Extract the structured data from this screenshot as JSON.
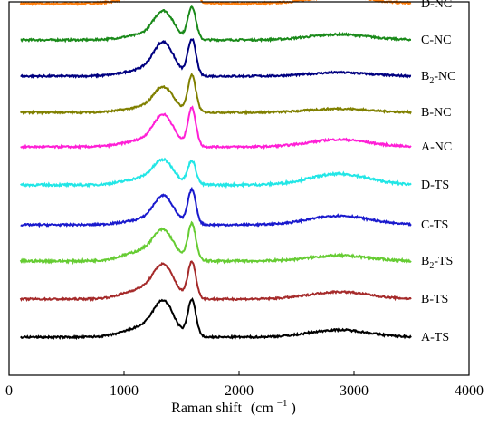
{
  "chart_data": {
    "type": "line",
    "title": "",
    "xlabel": "Raman shift",
    "xlabel_unit_base": "(cm",
    "xlabel_unit_sup": "−1",
    "xlabel_unit_close": ")",
    "ylabel": "",
    "xlim": [
      0,
      4000
    ],
    "xticks": [
      "0",
      "1000",
      "2000",
      "3000",
      "4000"
    ],
    "x_data_range": [
      100,
      3500
    ],
    "grid": false,
    "legend": "labels at right end of each curve",
    "series": [
      {
        "name": "D-NC",
        "name_sub": "",
        "name_tail": "",
        "color": "#ff7f0e",
        "baseline": 10.0,
        "dband": 1.0,
        "gband": 1.2,
        "wing": 0.25,
        "tail": 0.2,
        "noise": 0.05
      },
      {
        "name": "C-NC",
        "name_sub": "",
        "name_tail": "",
        "color": "#1a8a1a",
        "baseline": 9.0,
        "dband": 0.7,
        "gband": 0.9,
        "wing": 0.15,
        "tail": 0.15,
        "noise": 0.05
      },
      {
        "name": "B",
        "name_sub": "2",
        "name_tail": "-NC",
        "color": "#000080",
        "baseline": 8.0,
        "dband": 0.8,
        "gband": 1.0,
        "wing": 0.2,
        "tail": 0.1,
        "noise": 0.05
      },
      {
        "name": "B-NC",
        "name_sub": "",
        "name_tail": "",
        "color": "#808000",
        "baseline": 7.0,
        "dband": 0.6,
        "gband": 1.0,
        "wing": 0.15,
        "tail": 0.1,
        "noise": 0.05
      },
      {
        "name": "A-NC",
        "name_sub": "",
        "name_tail": "",
        "color": "#ff1fd6",
        "baseline": 6.05,
        "dband": 0.75,
        "gband": 1.05,
        "wing": 0.2,
        "tail": 0.2,
        "noise": 0.05
      },
      {
        "name": "D-TS",
        "name_sub": "",
        "name_tail": "",
        "color": "#22e6e6",
        "baseline": 5.0,
        "dband": 0.55,
        "gband": 0.65,
        "wing": 0.2,
        "tail": 0.3,
        "noise": 0.06
      },
      {
        "name": "C-TS",
        "name_sub": "",
        "name_tail": "",
        "color": "#1a1acd",
        "baseline": 3.9,
        "dband": 0.7,
        "gband": 0.95,
        "wing": 0.15,
        "tail": 0.25,
        "noise": 0.05
      },
      {
        "name": "B",
        "name_sub": "2",
        "name_tail": "-TS",
        "color": "#66cc33",
        "baseline": 2.9,
        "dband": 0.65,
        "gband": 1.0,
        "wing": 0.3,
        "tail": 0.15,
        "noise": 0.06
      },
      {
        "name": "B-TS",
        "name_sub": "",
        "name_tail": "",
        "color": "#a52a2a",
        "baseline": 1.85,
        "dband": 0.75,
        "gband": 1.0,
        "wing": 0.3,
        "tail": 0.2,
        "noise": 0.05
      },
      {
        "name": "A-TS",
        "name_sub": "",
        "name_tail": "",
        "color": "#000000",
        "baseline": 0.8,
        "dband": 0.8,
        "gband": 1.0,
        "wing": 0.3,
        "tail": 0.2,
        "noise": 0.05
      }
    ]
  }
}
